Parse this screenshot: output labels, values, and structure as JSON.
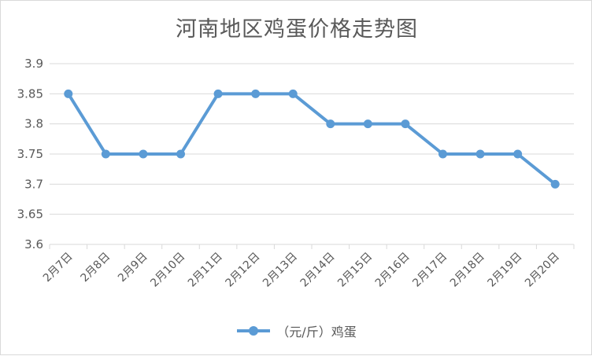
{
  "chart_data": {
    "type": "line",
    "title": "河南地区鸡蛋价格走势图",
    "categories": [
      "2月7日",
      "2月8日",
      "2月9日",
      "2月10日",
      "2月11日",
      "2月12日",
      "2月13日",
      "2月14日",
      "2月15日",
      "2月16日",
      "2月17日",
      "2月18日",
      "2月19日",
      "2月20日"
    ],
    "series": [
      {
        "name": "（元/斤）鸡蛋",
        "values": [
          3.85,
          3.75,
          3.75,
          3.75,
          3.85,
          3.85,
          3.85,
          3.8,
          3.8,
          3.8,
          3.75,
          3.75,
          3.75,
          3.7
        ]
      }
    ],
    "ylim": [
      3.6,
      3.9
    ],
    "yticks": [
      "3.6",
      "3.65",
      "3.7",
      "3.75",
      "3.8",
      "3.85",
      "3.9"
    ],
    "xlabel": "",
    "ylabel": "",
    "grid": true,
    "legend": "bottom",
    "colors": {
      "line": "#5B9BD5",
      "grid": "#d9d9d9",
      "text": "#595959"
    }
  }
}
